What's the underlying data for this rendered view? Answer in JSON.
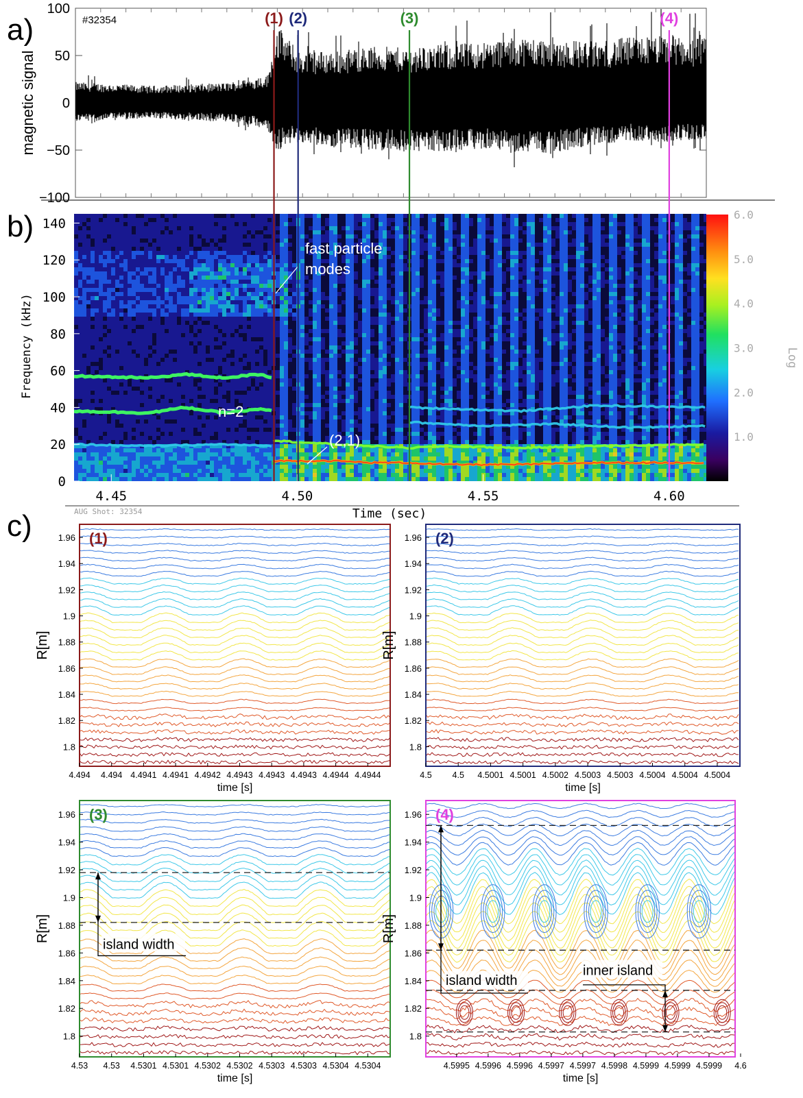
{
  "panel_letters": {
    "a": "a)",
    "b": "b)",
    "c": "c)"
  },
  "chart_data": [
    {
      "id": "a",
      "type": "line",
      "shot_label": "#32354",
      "ylabel": "magnetic signal",
      "ylim": [
        -100,
        100
      ],
      "yticks": [
        "100",
        "50",
        "0",
        "−50",
        "−100"
      ],
      "xlim": [
        4.44,
        4.61
      ],
      "envelope": {
        "t": [
          4.44,
          4.46,
          4.48,
          4.488,
          4.492,
          4.494,
          4.496,
          4.5,
          4.51,
          4.52,
          4.53,
          4.54,
          4.55,
          4.56,
          4.57,
          4.58,
          4.59,
          4.6,
          4.61
        ],
        "upper": [
          22,
          18,
          21,
          26,
          30,
          85,
          75,
          55,
          55,
          60,
          58,
          62,
          65,
          70,
          68,
          65,
          70,
          72,
          68
        ],
        "lower": [
          -20,
          -17,
          -20,
          -25,
          -30,
          -55,
          -45,
          -42,
          -48,
          -50,
          -52,
          -52,
          -48,
          -55,
          -52,
          -45,
          -40,
          -42,
          -38
        ]
      },
      "markers": [
        {
          "label": "(1)",
          "t": 4.4935,
          "color": "#8b1a1a"
        },
        {
          "label": "(2)",
          "t": 4.5,
          "color": "#1f2a7a"
        },
        {
          "label": "(3)",
          "t": 4.53,
          "color": "#2e8b2e"
        },
        {
          "label": "(4)",
          "t": 4.6,
          "color": "#e040e0"
        }
      ]
    },
    {
      "id": "b",
      "type": "heatmap",
      "ylabel": "Frequency (kHz)",
      "xlabel": "Time (sec)",
      "xlim": [
        4.44,
        4.61
      ],
      "ylim": [
        0,
        145
      ],
      "xticks": [
        "4.45",
        "4.50",
        "4.55",
        "4.60"
      ],
      "yticks": [
        "140",
        "120",
        "100",
        "80",
        "60",
        "40",
        "20",
        "0"
      ],
      "colorbar": {
        "label": "Log",
        "ticks": [
          "6.0",
          "5.0",
          "4.0",
          "3.0",
          "2.0",
          "1.0"
        ],
        "range": [
          0,
          6
        ]
      },
      "annotations": [
        "fast particle modes",
        "n=2",
        "(2,1)"
      ],
      "annotation_lines": {
        "fast": [
          "fast particle",
          "modes"
        ]
      },
      "footer": "AUG Shot: 32354",
      "modes": [
        {
          "t": [
            4.44,
            4.46,
            4.47,
            4.48,
            4.49,
            4.4935
          ],
          "f": [
            57,
            56,
            58,
            56,
            58,
            56
          ]
        },
        {
          "t": [
            4.44,
            4.46,
            4.47,
            4.48,
            4.49,
            4.4935
          ],
          "f": [
            38,
            37,
            40,
            37,
            39,
            38
          ]
        },
        {
          "t": [
            4.44,
            4.46,
            4.48,
            4.4935
          ],
          "f": [
            20,
            19,
            20,
            19
          ]
        },
        {
          "t": [
            4.4935,
            4.51,
            4.52,
            4.53,
            4.54,
            4.56,
            4.58,
            4.61
          ],
          "f": [
            11,
            11,
            10,
            10,
            9,
            9,
            10,
            10
          ]
        },
        {
          "t": [
            4.4935,
            4.51,
            4.52,
            4.53,
            4.54,
            4.56,
            4.58,
            4.61
          ],
          "f": [
            22,
            20,
            19,
            18,
            19,
            18,
            19,
            20
          ]
        },
        {
          "t": [
            4.53,
            4.55,
            4.57,
            4.59,
            4.61
          ],
          "f": [
            32,
            30,
            31,
            29,
            30
          ]
        },
        {
          "t": [
            4.53,
            4.56,
            4.58,
            4.61
          ],
          "f": [
            40,
            38,
            41,
            40
          ]
        }
      ]
    },
    {
      "id": "c1",
      "type": "contour",
      "label": "(1)",
      "color": "#8b1a1a",
      "ylabel": "R[m]",
      "xlabel": "time [s]",
      "yticks": [
        "1.96",
        "1.94",
        "1.92",
        "1.9",
        "1.88",
        "1.86",
        "1.84",
        "1.82",
        "1.8"
      ],
      "ylim": [
        1.785,
        1.97
      ],
      "xticks": [
        "4.494",
        "4.494",
        "4.4941",
        "4.4941",
        "4.4942",
        "4.4943",
        "4.4943",
        "4.4943",
        "4.4944",
        "4.4944"
      ],
      "periods": 4
    },
    {
      "id": "c2",
      "type": "contour",
      "label": "(2)",
      "color": "#1f2a7a",
      "ylabel": "R[m]",
      "xlabel": "time [s]",
      "yticks": [
        "1.96",
        "1.94",
        "1.92",
        "1.9",
        "1.88",
        "1.86",
        "1.84",
        "1.82",
        "1.8"
      ],
      "ylim": [
        1.785,
        1.97
      ],
      "xticks": [
        "4.5",
        "4.5",
        "4.5001",
        "4.5001",
        "4.5002",
        "4.5003",
        "4.5003",
        "4.5004",
        "4.5004",
        "4.5004"
      ],
      "periods": 4
    },
    {
      "id": "c3",
      "type": "contour",
      "label": "(3)",
      "color": "#2e8b2e",
      "ylabel": "R[m]",
      "xlabel": "time [s]",
      "yticks": [
        "1.96",
        "1.94",
        "1.92",
        "1.9",
        "1.88",
        "1.86",
        "1.84",
        "1.82",
        "1.8"
      ],
      "ylim": [
        1.785,
        1.97
      ],
      "xticks": [
        "4.53",
        "4.53",
        "4.5301",
        "4.5301",
        "4.5302",
        "4.5302",
        "4.5303",
        "4.5303",
        "4.5304",
        "4.5304"
      ],
      "periods": 4,
      "dashed_R": [
        1.918,
        1.882
      ],
      "annotations": [
        "island width"
      ]
    },
    {
      "id": "c4",
      "type": "contour",
      "label": "(4)",
      "color": "#e040e0",
      "ylabel": "R[m]",
      "xlabel": "time [s]",
      "yticks": [
        "1.96",
        "1.94",
        "1.92",
        "1.9",
        "1.88",
        "1.86",
        "1.84",
        "1.82",
        "1.8"
      ],
      "ylim": [
        1.785,
        1.97
      ],
      "xticks": [
        "4.5995",
        "4.5996",
        "4.5996",
        "4.5997",
        "4.5997",
        "4.5998",
        "4.5999",
        "4.5999",
        "4.5999",
        "4.6"
      ],
      "periods": 6,
      "dashed_R": [
        1.952,
        1.862,
        1.833,
        1.803
      ],
      "annotations": [
        "island width",
        "inner island"
      ]
    }
  ]
}
